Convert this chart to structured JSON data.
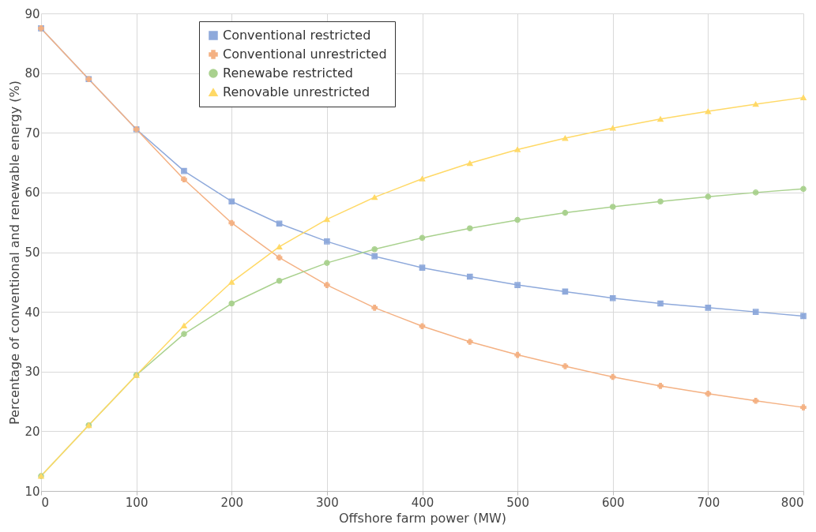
{
  "chart_data": {
    "type": "line",
    "xlabel": "Offshore farm power (MW)",
    "ylabel": "Percentage of conventional and renewable energy (%)",
    "x": [
      0,
      50,
      100,
      150,
      200,
      250,
      300,
      350,
      400,
      450,
      500,
      550,
      600,
      650,
      700,
      750,
      800
    ],
    "xlim": [
      0,
      800
    ],
    "xticks": [
      0,
      100,
      200,
      300,
      400,
      500,
      600,
      700,
      800
    ],
    "ylim": [
      10,
      90
    ],
    "yticks": [
      10,
      20,
      30,
      40,
      50,
      60,
      70,
      80,
      90
    ],
    "grid": true,
    "legend": "top",
    "line_style": "solid",
    "series": [
      {
        "name": "Conventional restricted",
        "color": "#8ea9db",
        "marker": "square",
        "values": [
          87.5,
          79,
          70.6,
          63.6,
          58.5,
          54.8,
          51.8,
          49.3,
          47.4,
          45.9,
          44.5,
          43.4,
          42.3,
          41.4,
          40.7,
          40.0,
          39.3
        ]
      },
      {
        "name": "Conventional unrestricted",
        "color": "#f4b183",
        "marker": "cross",
        "values": [
          87.5,
          79,
          70.6,
          62.2,
          54.9,
          49.1,
          44.5,
          40.7,
          37.6,
          35.0,
          32.8,
          30.9,
          29.1,
          27.6,
          26.3,
          25.1,
          24.0
        ]
      },
      {
        "name": "Renewabe restricted",
        "color": "#a9d18e",
        "marker": "circle",
        "values": [
          12.5,
          21,
          29.4,
          36.3,
          41.4,
          45.2,
          48.2,
          50.5,
          52.4,
          54.0,
          55.4,
          56.6,
          57.6,
          58.5,
          59.3,
          60.0,
          60.6
        ]
      },
      {
        "name": "Renovable unrestricted",
        "color": "#ffd966",
        "marker": "triangle",
        "values": [
          12.5,
          21,
          29.4,
          37.7,
          45.0,
          50.9,
          55.5,
          59.2,
          62.3,
          64.9,
          67.2,
          69.1,
          70.8,
          72.3,
          73.6,
          74.8,
          75.9
        ]
      }
    ]
  }
}
